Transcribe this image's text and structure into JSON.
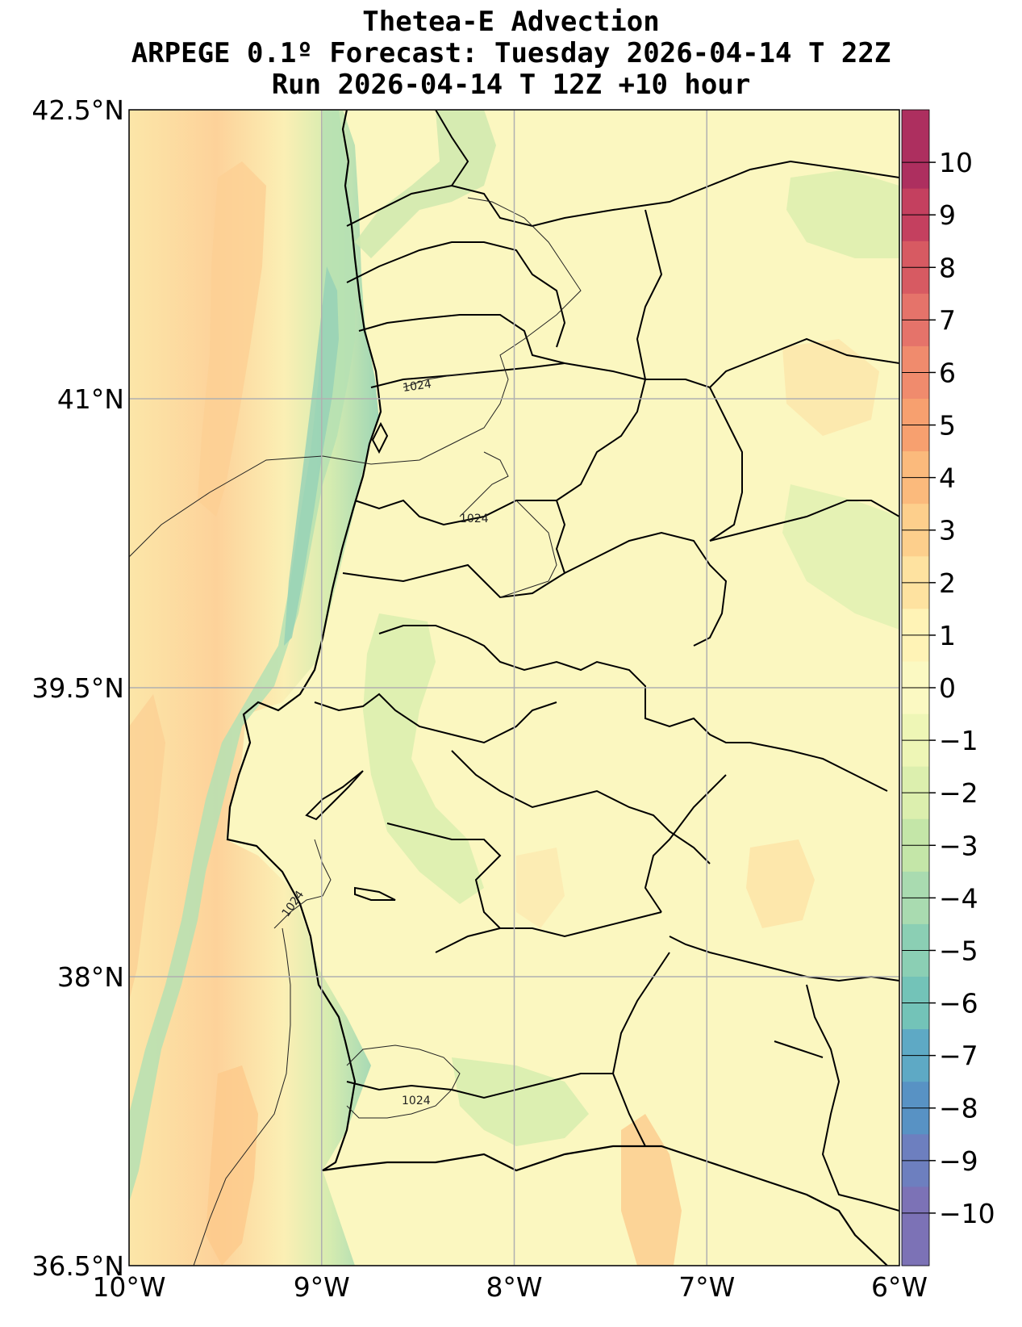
{
  "title": {
    "line1": "Thetea-E Advection",
    "line2": "ARPEGE 0.1º Forecast: Tuesday 2026-04-14 T 22Z",
    "line3": "Run 2026-04-14 T 12Z +10 hour"
  },
  "map": {
    "lon_range": [
      -10,
      -6
    ],
    "lat_range": [
      36.5,
      42.5
    ],
    "lon_ticks": [
      {
        "value": -10,
        "label": "10°W"
      },
      {
        "value": -9,
        "label": "9°W"
      },
      {
        "value": -8,
        "label": "8°W"
      },
      {
        "value": -7,
        "label": "7°W"
      },
      {
        "value": -6,
        "label": "6°W"
      }
    ],
    "lat_ticks": [
      {
        "value": 42.5,
        "label": "42.5°N"
      },
      {
        "value": 41,
        "label": "41°N"
      },
      {
        "value": 39.5,
        "label": "39.5°N"
      },
      {
        "value": 38,
        "label": "38°N"
      },
      {
        "value": 36.5,
        "label": "36.5°N"
      }
    ],
    "grid": true,
    "isobar_labels": [
      "1024",
      "1024",
      "1024",
      "1024"
    ],
    "colors": {
      "ocean_band_near": "#a9d9b3",
      "ocean_band_far": "#fdd49a",
      "land_base": "#fbf7c0",
      "land_green": "#e4f1b0",
      "warm_patch": "#fcdc9c"
    }
  },
  "colorbar": {
    "levels": [
      10,
      9,
      8,
      7,
      6,
      5,
      4,
      3,
      2,
      1,
      0,
      -1,
      -2,
      -3,
      -4,
      -5,
      -6,
      -7,
      -8,
      -9,
      -10
    ],
    "labels": [
      "10",
      "9",
      "8",
      "7",
      "6",
      "5",
      "4",
      "3",
      "2",
      "1",
      "0",
      "−1",
      "−2",
      "−3",
      "−4",
      "−5",
      "−6",
      "−7",
      "−8",
      "−9",
      "−10"
    ],
    "colors": [
      "#ad2f5f",
      "#c4405f",
      "#d75a62",
      "#e5736a",
      "#f08b6d",
      "#f7a06f",
      "#fbba7c",
      "#fdcf8c",
      "#fee2a0",
      "#fff3b6",
      "#fbf9c2",
      "#eef6b6",
      "#dcefae",
      "#c4e6a8",
      "#a9dbb0",
      "#8bcfb4",
      "#73c3b8",
      "#5ea9c5",
      "#5892c4",
      "#6d7fbf",
      "#7c72b6"
    ]
  }
}
